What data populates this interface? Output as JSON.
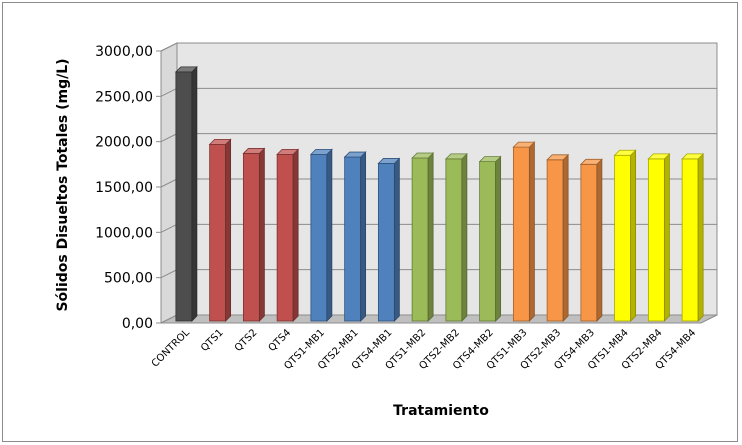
{
  "chart_data": {
    "type": "bar",
    "title": "",
    "xlabel": "Tratamiento",
    "ylabel": "Sólidos Disueltos Totales (mg/L)",
    "ylim": [
      0,
      3000
    ],
    "yticks": [
      "0,00",
      "500,00",
      "1000,00",
      "1500,00",
      "2000,00",
      "2500,00",
      "3000,00"
    ],
    "grid": true,
    "legend": "none",
    "categories": [
      "CONTROL",
      "QTS1",
      "QTS2",
      "QTS4",
      "QTS1-MB1",
      "QTS2-MB1",
      "QTS4-MB1",
      "QTS1-MB2",
      "QTS2-MB2",
      "QTS4-MB2",
      "QTS1-MB3",
      "QTS2-MB3",
      "QTS4-MB3",
      "QTS1-MB4",
      "QTS2-MB4",
      "QTS4-MB4"
    ],
    "values": [
      2770,
      1970,
      1870,
      1860,
      1860,
      1830,
      1760,
      1820,
      1810,
      1780,
      1940,
      1800,
      1750,
      1850,
      1810,
      1810
    ],
    "colors": [
      "#4d4d4d",
      "#c0504d",
      "#c0504d",
      "#c0504d",
      "#4f81bd",
      "#4f81bd",
      "#4f81bd",
      "#9bbb59",
      "#9bbb59",
      "#9bbb59",
      "#f79646",
      "#f79646",
      "#f79646",
      "#ffff00",
      "#ffff00",
      "#ffff00"
    ]
  }
}
